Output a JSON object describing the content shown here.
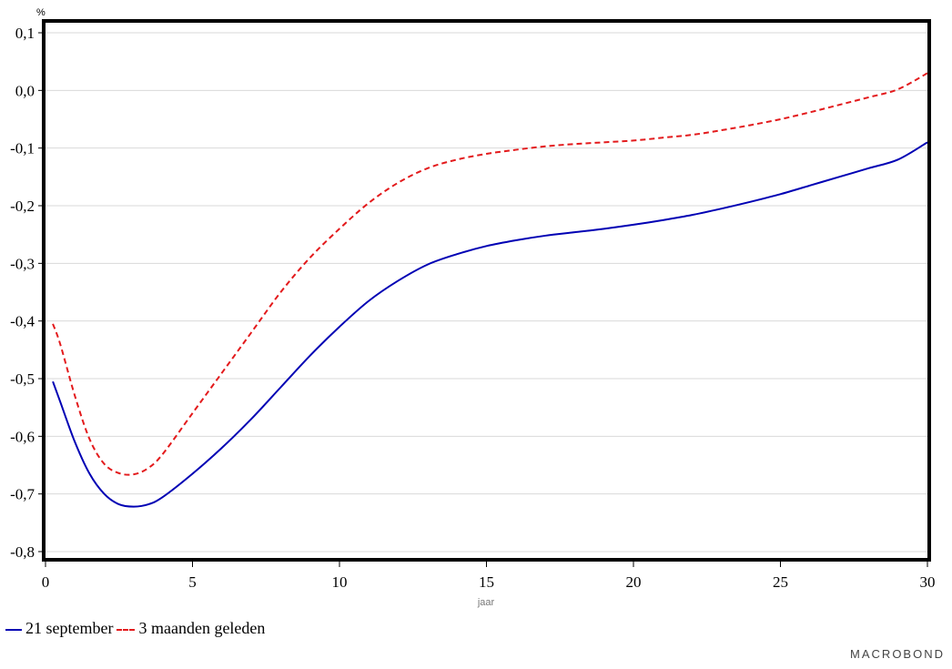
{
  "chart_data": {
    "type": "line",
    "unit_label": "%",
    "xlabel": "jaar",
    "xlim": [
      0,
      30
    ],
    "ylim": [
      -0.8,
      0.1
    ],
    "x_ticks": [
      0,
      5,
      10,
      15,
      20,
      25,
      30
    ],
    "x_tick_labels": [
      "0",
      "5",
      "10",
      "15",
      "20",
      "25",
      "30"
    ],
    "y_ticks": [
      0.1,
      0.0,
      -0.1,
      -0.2,
      -0.3,
      -0.4,
      -0.5,
      -0.6,
      -0.7,
      -0.8
    ],
    "y_tick_labels": [
      "0,1",
      "0,0",
      "-0,1",
      "-0,2",
      "-0,3",
      "-0,4",
      "-0,5",
      "-0,6",
      "-0,7",
      "-0,8"
    ],
    "grid": true,
    "legend_position": "bottom-left",
    "series": [
      {
        "name": "21 september",
        "color": "#0000b4",
        "dash": false,
        "x": [
          0.25,
          0.5,
          1,
          1.5,
          2,
          2.5,
          3,
          3.5,
          4,
          5,
          6,
          7,
          8,
          9,
          10,
          11,
          12,
          13,
          14,
          15,
          16,
          17,
          18,
          19,
          20,
          21,
          22,
          23,
          24,
          25,
          26,
          27,
          28,
          29,
          30
        ],
        "y": [
          -0.505,
          -0.54,
          -0.61,
          -0.665,
          -0.7,
          -0.718,
          -0.722,
          -0.718,
          -0.705,
          -0.665,
          -0.62,
          -0.57,
          -0.515,
          -0.46,
          -0.41,
          -0.365,
          -0.33,
          -0.302,
          -0.284,
          -0.27,
          -0.26,
          -0.252,
          -0.246,
          -0.24,
          -0.233,
          -0.225,
          -0.216,
          -0.205,
          -0.193,
          -0.18,
          -0.165,
          -0.15,
          -0.135,
          -0.12,
          -0.09
        ]
      },
      {
        "name": "3 maanden geleden",
        "color": "#e31a1c",
        "dash": true,
        "x": [
          0.25,
          0.5,
          1,
          1.5,
          2,
          2.5,
          3,
          3.5,
          4,
          5,
          6,
          7,
          8,
          9,
          10,
          11,
          12,
          13,
          14,
          15,
          16,
          17,
          18,
          19,
          20,
          21,
          22,
          23,
          24,
          25,
          26,
          27,
          28,
          29,
          30
        ],
        "y": [
          -0.405,
          -0.44,
          -0.53,
          -0.605,
          -0.648,
          -0.664,
          -0.666,
          -0.655,
          -0.63,
          -0.56,
          -0.49,
          -0.42,
          -0.35,
          -0.29,
          -0.24,
          -0.195,
          -0.16,
          -0.135,
          -0.12,
          -0.11,
          -0.103,
          -0.097,
          -0.093,
          -0.09,
          -0.087,
          -0.082,
          -0.077,
          -0.069,
          -0.06,
          -0.05,
          -0.038,
          -0.025,
          -0.012,
          0.002,
          0.03
        ]
      }
    ]
  },
  "brand": {
    "text": "MACROBOND"
  }
}
